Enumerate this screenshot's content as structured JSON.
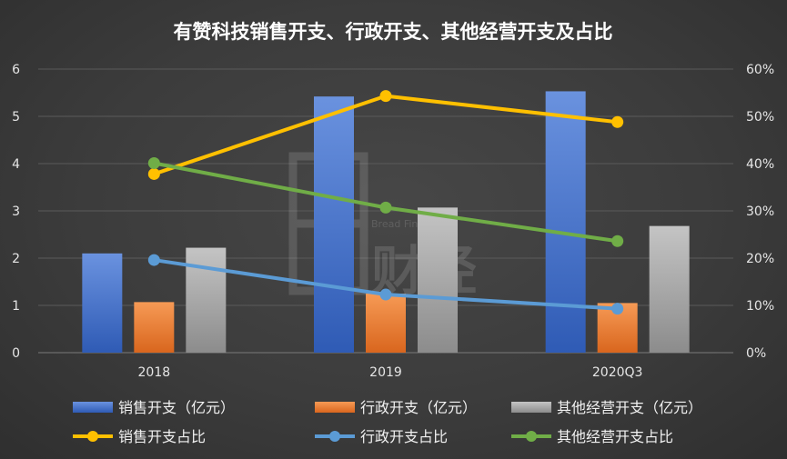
{
  "chart_data": {
    "type": "bar",
    "title": "有赞科技销售开支、行政开支、其他经营开支及占比",
    "categories": [
      "2018",
      "2019",
      "2020Q3"
    ],
    "y_left": {
      "ylim": [
        0,
        6
      ],
      "ticks": [
        "0",
        "1",
        "2",
        "3",
        "4",
        "5",
        "6"
      ]
    },
    "y_right": {
      "ylim": [
        0,
        60
      ],
      "ticks": [
        "0%",
        "10%",
        "20%",
        "30%",
        "40%",
        "50%",
        "60%"
      ]
    },
    "grid": true,
    "legend_position": "bottom",
    "bar_series": [
      {
        "name": "销售开支（亿元）",
        "values": [
          2.1,
          5.42,
          5.53
        ],
        "color": "#4472c4"
      },
      {
        "name": "行政开支（亿元）",
        "values": [
          1.07,
          1.25,
          1.05
        ],
        "color": "#ed7d31"
      },
      {
        "name": "其他经营开支（亿元）",
        "values": [
          2.22,
          3.07,
          2.68
        ],
        "color": "#a5a5a5"
      }
    ],
    "line_series": [
      {
        "name": "销售开支占比",
        "values": [
          37.8,
          54.3,
          48.8
        ],
        "color": "#ffc000",
        "axis": "right"
      },
      {
        "name": "行政开支占比",
        "values": [
          19.6,
          12.3,
          9.3
        ],
        "color": "#5b9bd5",
        "axis": "right"
      },
      {
        "name": "其他经营开支占比",
        "values": [
          40.1,
          30.7,
          23.6
        ],
        "color": "#70ad47",
        "axis": "right"
      }
    ]
  },
  "watermark": {
    "brand": "Bread Finance",
    "cn_text": "财经"
  }
}
